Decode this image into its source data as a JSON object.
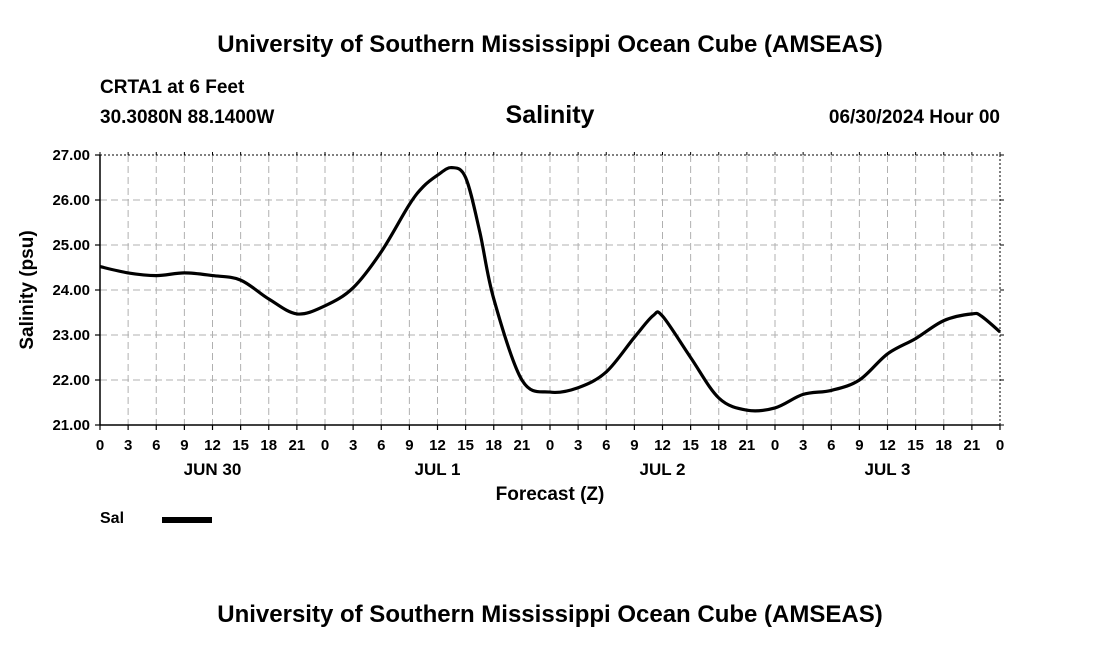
{
  "header": {
    "title": "University of Southern Mississippi Ocean Cube (AMSEAS)",
    "station": "CRTA1 at 6 Feet",
    "coords": "30.3080N  88.1400W",
    "variable": "Salinity",
    "run_time": "06/30/2024 Hour 00"
  },
  "footer": {
    "title": "University of Southern Mississippi Ocean Cube (AMSEAS)"
  },
  "legend": {
    "label": "Sal"
  },
  "chart_data": {
    "type": "line",
    "title": "Salinity",
    "xlabel": "Forecast (Z)",
    "ylabel": "Salinity (psu)",
    "ylim": [
      21.0,
      27.0
    ],
    "xlim": [
      0,
      96
    ],
    "grid": true,
    "yticks": [
      "21.00",
      "22.00",
      "23.00",
      "24.00",
      "25.00",
      "26.00",
      "27.00"
    ],
    "xticks": [
      "0",
      "3",
      "6",
      "9",
      "12",
      "15",
      "18",
      "21",
      "0",
      "3",
      "6",
      "9",
      "12",
      "15",
      "18",
      "21",
      "0",
      "3",
      "6",
      "9",
      "12",
      "15",
      "18",
      "21",
      "0",
      "3",
      "6",
      "9",
      "12",
      "15",
      "18",
      "21",
      "0"
    ],
    "day_labels": [
      {
        "label": "JUN 30",
        "hour": 12
      },
      {
        "label": "JUL 1",
        "hour": 36
      },
      {
        "label": "JUL 2",
        "hour": 60
      },
      {
        "label": "JUL 3",
        "hour": 84
      }
    ],
    "series": [
      {
        "name": "Sal",
        "color": "#000000",
        "x": [
          0,
          3,
          6,
          9,
          12,
          15,
          18,
          21,
          24,
          27,
          30,
          33,
          34.5,
          36,
          37.5,
          39,
          40.5,
          42,
          45,
          48,
          51,
          54,
          57,
          59,
          60,
          63,
          66,
          69,
          72,
          75,
          78,
          81,
          84,
          87,
          90,
          93,
          94,
          96
        ],
        "values": [
          24.52,
          24.38,
          24.32,
          24.38,
          24.32,
          24.22,
          23.8,
          23.47,
          23.65,
          24.05,
          24.85,
          25.9,
          26.3,
          26.55,
          26.72,
          26.5,
          25.3,
          23.8,
          22.0,
          21.73,
          21.83,
          22.18,
          22.95,
          23.43,
          23.42,
          22.5,
          21.6,
          21.33,
          21.38,
          21.68,
          21.77,
          22.0,
          22.58,
          22.92,
          23.32,
          23.47,
          23.42,
          23.07
        ]
      }
    ]
  }
}
